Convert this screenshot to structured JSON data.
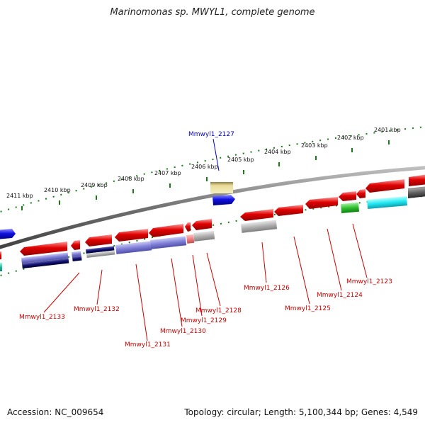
{
  "title": "Marinomonas sp. MWYL1, complete genome",
  "footer": {
    "accession": "Accession: NC_009654",
    "summary": "Topology: circular; Length: 5,100,344 bp; Genes: 4,549"
  },
  "outer_scale": [
    {
      "label": "2401 kbp"
    },
    {
      "label": "2402 kbp"
    },
    {
      "label": "2403 kbp"
    },
    {
      "label": "2404 kbp"
    },
    {
      "label": "2405 kbp"
    },
    {
      "label": "2406 kbp"
    },
    {
      "label": "2407 kbp"
    },
    {
      "label": "2408 kbp"
    },
    {
      "label": "2409 kbp"
    },
    {
      "label": "2410 kbp"
    },
    {
      "label": "2411 kbp"
    }
  ],
  "gene_labels": [
    {
      "name": "Mmwyl1_2127",
      "color": "#0000cc"
    },
    {
      "name": "Mmwyl1_2123",
      "color": "#cc0000"
    },
    {
      "name": "Mmwyl1_2124",
      "color": "#cc0000"
    },
    {
      "name": "Mmwyl1_2125",
      "color": "#cc0000"
    },
    {
      "name": "Mmwyl1_2126",
      "color": "#cc0000"
    },
    {
      "name": "Mmwyl1_2128",
      "color": "#cc0000"
    },
    {
      "name": "Mmwyl1_2129",
      "color": "#cc0000"
    },
    {
      "name": "Mmwyl1_2130",
      "color": "#cc0000"
    },
    {
      "name": "Mmwyl1_2131",
      "color": "#cc0000"
    },
    {
      "name": "Mmwyl1_2132",
      "color": "#cc0000"
    },
    {
      "name": "Mmwyl1_2133",
      "color": "#cc0000"
    }
  ],
  "colors": {
    "forward_gene": "#e00000",
    "reverse_gene": "#1010e0",
    "backbone": "#777777",
    "scale": "#1a7a1a",
    "cog_purple": "#8080d8",
    "cog_navy": "#101070",
    "cog_grey": "#b0b0b0",
    "cog_pink": "#f08080",
    "cog_green": "#30c030",
    "cog_cyan": "#20e8f0",
    "cog_khaki": "#e8dc98",
    "cog_teal": "#20c0a0"
  }
}
